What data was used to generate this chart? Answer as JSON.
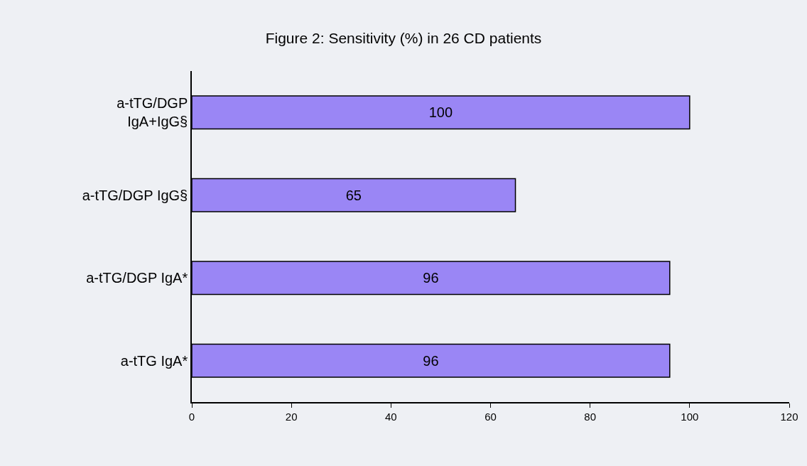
{
  "chart_data": {
    "type": "bar",
    "orientation": "horizontal",
    "title": "Figure 2: Sensitivity (%) in 26 CD patients",
    "categories": [
      "a-tTG/DGP\nIgA+IgG§",
      "a-tTG/DGP IgG§",
      "a-tTG/DGP IgA*",
      "a-tTG IgA*"
    ],
    "values": [
      100,
      65,
      96,
      96
    ],
    "color": "#9a86f5",
    "xlim": [
      0,
      120
    ],
    "xticks": [
      0,
      20,
      40,
      60,
      80,
      100,
      120
    ],
    "data_labels": true,
    "grid": false
  }
}
